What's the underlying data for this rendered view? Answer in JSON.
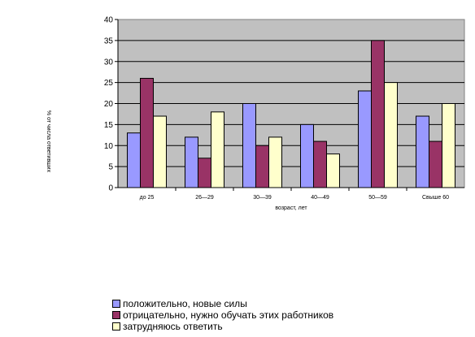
{
  "chart_data": {
    "type": "bar",
    "categories": [
      "до 25",
      "26—29",
      "30—39",
      "40—49",
      "50—59",
      "Свыше 60"
    ],
    "series": [
      {
        "name": "положительно, новые силы",
        "values": [
          13,
          12,
          20,
          15,
          23,
          17
        ],
        "color": "#9999ff"
      },
      {
        "name": "отрицательно, нужно обучать этих работников",
        "values": [
          26,
          7,
          10,
          11,
          35,
          11
        ],
        "color": "#993366"
      },
      {
        "name": "затрудняюсь ответить",
        "values": [
          17,
          18,
          12,
          8,
          25,
          20
        ],
        "color": "#ffffcc"
      }
    ],
    "title": "",
    "xlabel": "возраст, лет",
    "ylabel": "% от числа ответивших",
    "ylim": [
      0,
      40
    ],
    "yticks": [
      0,
      5,
      10,
      15,
      20,
      25,
      30,
      35,
      40
    ],
    "grid": true,
    "plot_background": "#c0c0c0",
    "legend_position": "bottom-left"
  }
}
